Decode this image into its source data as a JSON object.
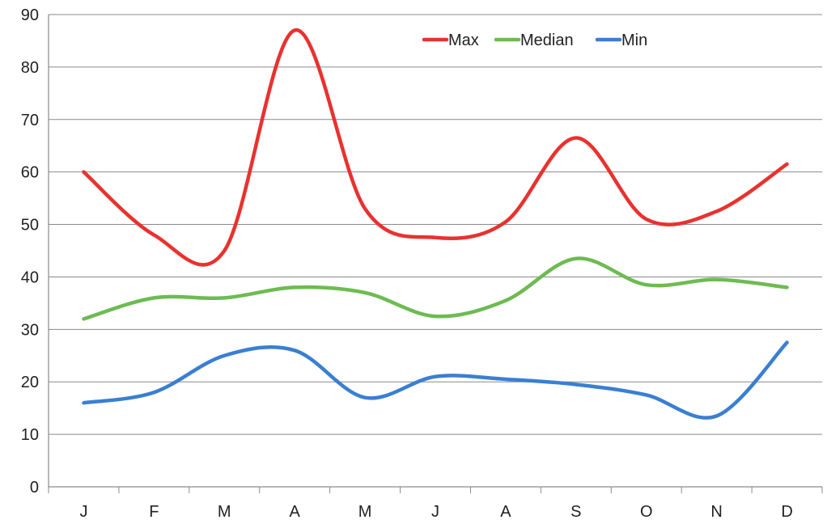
{
  "chart_data": {
    "type": "line",
    "title": "",
    "xlabel": "",
    "ylabel": "",
    "categories": [
      "J",
      "F",
      "M",
      "A",
      "M",
      "J",
      "A",
      "S",
      "O",
      "N",
      "D"
    ],
    "ylim": [
      0,
      90
    ],
    "yticks": [
      0,
      10,
      20,
      30,
      40,
      50,
      60,
      70,
      80,
      90
    ],
    "grid": true,
    "smooth": true,
    "legend": {
      "position": "top-right",
      "layout": "horizontal"
    },
    "series": [
      {
        "name": "Max",
        "color": "#e8322f",
        "values": [
          60,
          48,
          45,
          87,
          53,
          47.5,
          50.5,
          66.5,
          51,
          52.5,
          61.5
        ]
      },
      {
        "name": "Median",
        "color": "#6dbb52",
        "values": [
          32,
          36,
          36,
          38,
          37,
          32.5,
          35.5,
          43.5,
          38.5,
          39.5,
          38
        ]
      },
      {
        "name": "Min",
        "color": "#3a7fd1",
        "values": [
          16,
          18,
          25,
          26,
          17,
          21,
          20.5,
          19.5,
          17.5,
          13.5,
          27.5
        ]
      }
    ]
  }
}
